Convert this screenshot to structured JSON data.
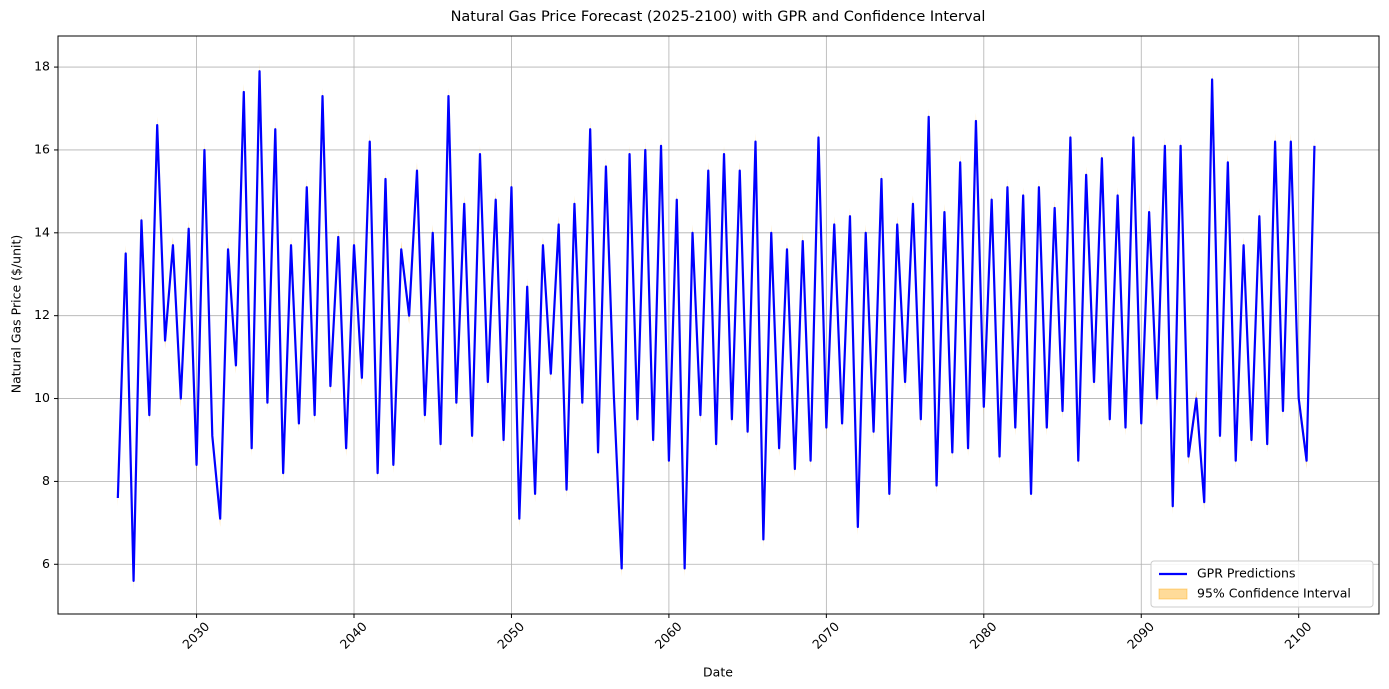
{
  "chart_data": {
    "type": "line",
    "title": "Natural Gas Price Forecast (2025-2100) with GPR and Confidence Interval",
    "xlabel": "Date",
    "ylabel": "Natural Gas Price ($/unit)",
    "xlim": [
      2021.2,
      2105.1
    ],
    "ylim": [
      4.8,
      18.75
    ],
    "xticks": [
      2030,
      2040,
      2050,
      2060,
      2070,
      2080,
      2090,
      2100
    ],
    "yticks": [
      6,
      8,
      10,
      12,
      14,
      16,
      18
    ],
    "grid": true,
    "legend": "lower right",
    "x": [
      2025,
      2025.5,
      2026,
      2026.5,
      2027,
      2027.5,
      2028,
      2028.5,
      2029,
      2029.5,
      2030,
      2030.5,
      2031,
      2031.5,
      2032,
      2032.5,
      2033,
      2033.5,
      2034,
      2034.5,
      2035,
      2035.5,
      2036,
      2036.5,
      2037,
      2037.5,
      2038,
      2038.5,
      2039,
      2039.5,
      2040,
      2040.5,
      2041,
      2041.5,
      2042,
      2042.5,
      2043,
      2043.5,
      2044,
      2044.5,
      2045,
      2045.5,
      2046,
      2046.5,
      2047,
      2047.5,
      2048,
      2048.5,
      2049,
      2049.5,
      2050,
      2050.5,
      2051,
      2051.5,
      2052,
      2052.5,
      2053,
      2053.5,
      2054,
      2054.5,
      2055,
      2055.5,
      2056,
      2056.5,
      2057,
      2057.5,
      2058,
      2058.5,
      2059,
      2059.5,
      2060,
      2060.5,
      2061,
      2061.5,
      2062,
      2062.5,
      2063,
      2063.5,
      2064,
      2064.5,
      2065,
      2065.5,
      2066,
      2066.5,
      2067,
      2067.5,
      2068,
      2068.5,
      2069,
      2069.5,
      2070,
      2070.5,
      2071,
      2071.5,
      2072,
      2072.5,
      2073,
      2073.5,
      2074,
      2074.5,
      2075,
      2075.5,
      2076,
      2076.5,
      2077,
      2077.5,
      2078,
      2078.5,
      2079,
      2079.5,
      2080,
      2080.5,
      2081,
      2081.5,
      2082,
      2082.5,
      2083,
      2083.5,
      2084,
      2084.5,
      2085,
      2085.5,
      2086,
      2086.5,
      2087,
      2087.5,
      2088,
      2088.5,
      2089,
      2089.5,
      2090,
      2090.5,
      2091,
      2091.5,
      2092,
      2092.5,
      2093,
      2093.5,
      2094,
      2094.5,
      2095,
      2095.5,
      2096,
      2096.5,
      2097,
      2097.5,
      2098,
      2098.5,
      2099,
      2099.5,
      2100,
      2100.5,
      2101
    ],
    "series": [
      {
        "name": "GPR Predictions",
        "color": "#0000ff",
        "values": [
          7.6,
          13.5,
          5.6,
          14.3,
          9.6,
          16.6,
          11.4,
          13.7,
          10.0,
          14.1,
          8.4,
          16.0,
          9.1,
          7.1,
          13.6,
          10.8,
          17.4,
          8.8,
          17.9,
          9.9,
          16.5,
          8.2,
          13.7,
          9.4,
          15.1,
          9.6,
          17.3,
          10.3,
          13.9,
          8.8,
          13.7,
          10.5,
          16.2,
          8.2,
          15.3,
          8.4,
          13.6,
          12.0,
          15.5,
          9.6,
          14.0,
          8.9,
          17.3,
          9.9,
          14.7,
          9.1,
          15.9,
          10.4,
          14.8,
          9.0,
          15.1,
          7.1,
          12.7,
          7.7,
          13.7,
          10.6,
          14.2,
          7.8,
          14.7,
          9.9,
          16.5,
          8.7,
          15.6,
          10.1,
          5.9,
          15.9,
          9.5,
          16.0,
          9.0,
          16.1,
          8.5,
          14.8,
          5.9,
          14.0,
          9.6,
          15.5,
          8.9,
          15.9,
          9.5,
          15.5,
          9.2,
          16.2,
          6.6,
          14.0,
          8.8,
          13.6,
          8.3,
          13.8,
          8.5,
          16.3,
          9.3,
          14.2,
          9.4,
          14.4,
          6.9,
          14.0,
          9.2,
          15.3,
          7.7,
          14.2,
          10.4,
          14.7,
          9.5,
          16.8,
          7.9,
          14.5,
          8.7,
          15.7,
          8.8,
          16.7,
          9.8,
          14.8,
          8.6,
          15.1,
          9.3,
          14.9,
          7.7,
          15.1,
          9.3,
          14.6,
          9.7,
          16.3,
          8.5,
          15.4,
          10.4,
          15.8,
          9.5,
          14.9,
          9.3,
          16.3,
          9.4,
          14.5,
          10.0,
          16.1,
          7.4,
          16.1,
          8.6,
          10.0,
          7.5,
          17.7,
          9.1,
          15.7,
          8.5,
          13.7,
          9.0,
          14.4,
          8.9,
          16.2,
          9.7,
          16.2,
          10.0,
          8.5,
          16.1
        ]
      },
      {
        "name": "95% Confidence Interval",
        "color": "#ffa500",
        "upper": [
          7.8,
          13.7,
          5.8,
          14.5,
          9.8,
          16.8,
          11.6,
          13.9,
          10.2,
          14.3,
          8.6,
          16.2,
          9.3,
          7.3,
          13.8,
          11.0,
          17.6,
          9.0,
          18.1,
          10.1,
          16.7,
          8.4,
          13.9,
          9.6,
          15.3,
          9.8,
          17.5,
          10.5,
          14.1,
          9.0,
          13.9,
          10.7,
          16.4,
          8.4,
          15.5,
          8.6,
          13.8,
          12.2,
          15.7,
          9.8,
          14.2,
          9.1,
          17.5,
          10.1,
          14.9,
          9.3,
          16.1,
          10.6,
          15.0,
          9.2,
          15.3,
          7.3,
          12.9,
          7.9,
          13.9,
          10.8,
          14.4,
          8.0,
          14.9,
          10.1,
          16.7,
          8.9,
          15.8,
          10.3,
          6.1,
          16.1,
          9.7,
          16.2,
          9.2,
          16.3,
          8.7,
          15.0,
          6.1,
          14.2,
          9.8,
          15.7,
          9.1,
          16.1,
          9.7,
          15.7,
          9.4,
          16.4,
          6.8,
          14.2,
          9.0,
          13.8,
          8.5,
          14.0,
          8.7,
          16.5,
          9.5,
          14.4,
          9.6,
          14.6,
          7.1,
          14.2,
          9.4,
          15.5,
          7.9,
          14.4,
          10.6,
          14.9,
          9.7,
          17.0,
          8.1,
          14.7,
          8.9,
          15.9,
          9.0,
          16.9,
          10.0,
          15.0,
          8.8,
          15.3,
          9.5,
          15.1,
          7.9,
          15.3,
          9.5,
          14.8,
          9.9,
          16.5,
          8.7,
          15.6,
          10.6,
          16.0,
          9.7,
          15.1,
          9.5,
          16.5,
          9.6,
          14.7,
          10.2,
          16.3,
          7.6,
          16.3,
          8.8,
          10.2,
          7.7,
          17.9,
          9.3,
          15.9,
          8.7,
          13.9,
          9.2,
          14.6,
          9.1,
          16.4,
          9.9,
          16.4,
          10.2,
          8.7,
          16.3
        ],
        "lower": [
          7.4,
          13.3,
          5.4,
          14.1,
          9.4,
          16.4,
          11.2,
          13.5,
          9.8,
          13.9,
          8.2,
          15.8,
          8.9,
          6.9,
          13.4,
          10.6,
          17.2,
          8.6,
          17.7,
          9.7,
          16.3,
          8.0,
          13.5,
          9.2,
          14.9,
          9.4,
          17.1,
          10.1,
          13.7,
          8.6,
          13.5,
          10.3,
          16.0,
          8.0,
          15.1,
          8.2,
          13.4,
          11.8,
          15.3,
          9.4,
          13.8,
          8.7,
          17.1,
          9.7,
          14.5,
          8.9,
          15.7,
          10.2,
          14.6,
          8.8,
          14.9,
          6.9,
          12.5,
          7.5,
          13.5,
          10.4,
          14.0,
          7.6,
          14.5,
          9.7,
          16.3,
          8.5,
          15.4,
          9.9,
          5.7,
          15.7,
          9.3,
          15.8,
          8.8,
          15.9,
          8.3,
          14.6,
          5.7,
          13.8,
          9.4,
          15.3,
          8.7,
          15.7,
          9.3,
          15.3,
          9.0,
          16.0,
          6.4,
          13.8,
          8.6,
          13.4,
          8.1,
          13.6,
          8.3,
          16.1,
          9.1,
          14.0,
          9.2,
          14.2,
          6.7,
          13.8,
          9.0,
          15.1,
          7.5,
          14.0,
          10.2,
          14.5,
          9.3,
          16.6,
          7.7,
          14.3,
          8.5,
          15.5,
          8.6,
          16.5,
          9.6,
          14.6,
          8.4,
          14.9,
          9.1,
          14.7,
          7.5,
          14.9,
          9.1,
          14.4,
          9.5,
          16.1,
          8.3,
          15.2,
          10.2,
          15.6,
          9.3,
          14.7,
          9.1,
          16.1,
          9.2,
          14.3,
          9.8,
          15.9,
          7.2,
          15.9,
          8.4,
          9.8,
          7.3,
          17.5,
          8.9,
          15.5,
          8.3,
          13.5,
          8.8,
          14.2,
          8.7,
          16.0,
          9.5,
          16.0,
          9.8,
          8.3,
          15.9
        ]
      }
    ]
  }
}
